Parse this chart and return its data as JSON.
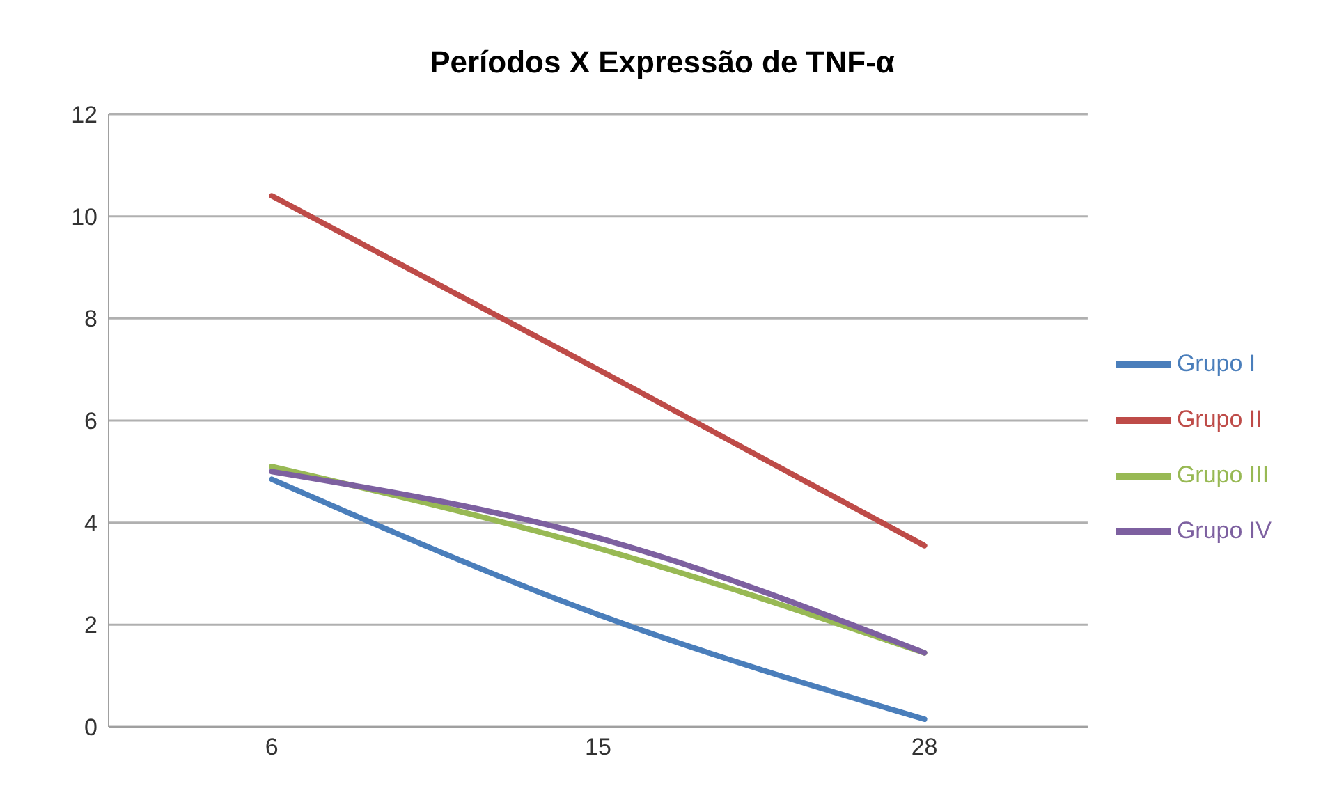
{
  "chart_data": {
    "type": "line",
    "title": "Períodos X Expressão de TNF-α",
    "categories": [
      "6",
      "15",
      "28"
    ],
    "series": [
      {
        "name": "Grupo I",
        "color": "#4a7ebb",
        "values": [
          4.85,
          2.2,
          0.15
        ]
      },
      {
        "name": "Grupo II",
        "color": "#be4b48",
        "values": [
          10.4,
          7.0,
          3.55
        ]
      },
      {
        "name": "Grupo III",
        "color": "#98b954",
        "values": [
          5.1,
          3.5,
          1.45
        ]
      },
      {
        "name": "Grupo IV",
        "color": "#7d60a0",
        "values": [
          5.0,
          3.7,
          1.45
        ]
      }
    ],
    "ylim": [
      0,
      12
    ],
    "yticks": [
      0,
      2,
      4,
      6,
      8,
      10,
      12
    ],
    "grid": "y",
    "legend": "right",
    "marker": "none",
    "line_style": "solid"
  }
}
